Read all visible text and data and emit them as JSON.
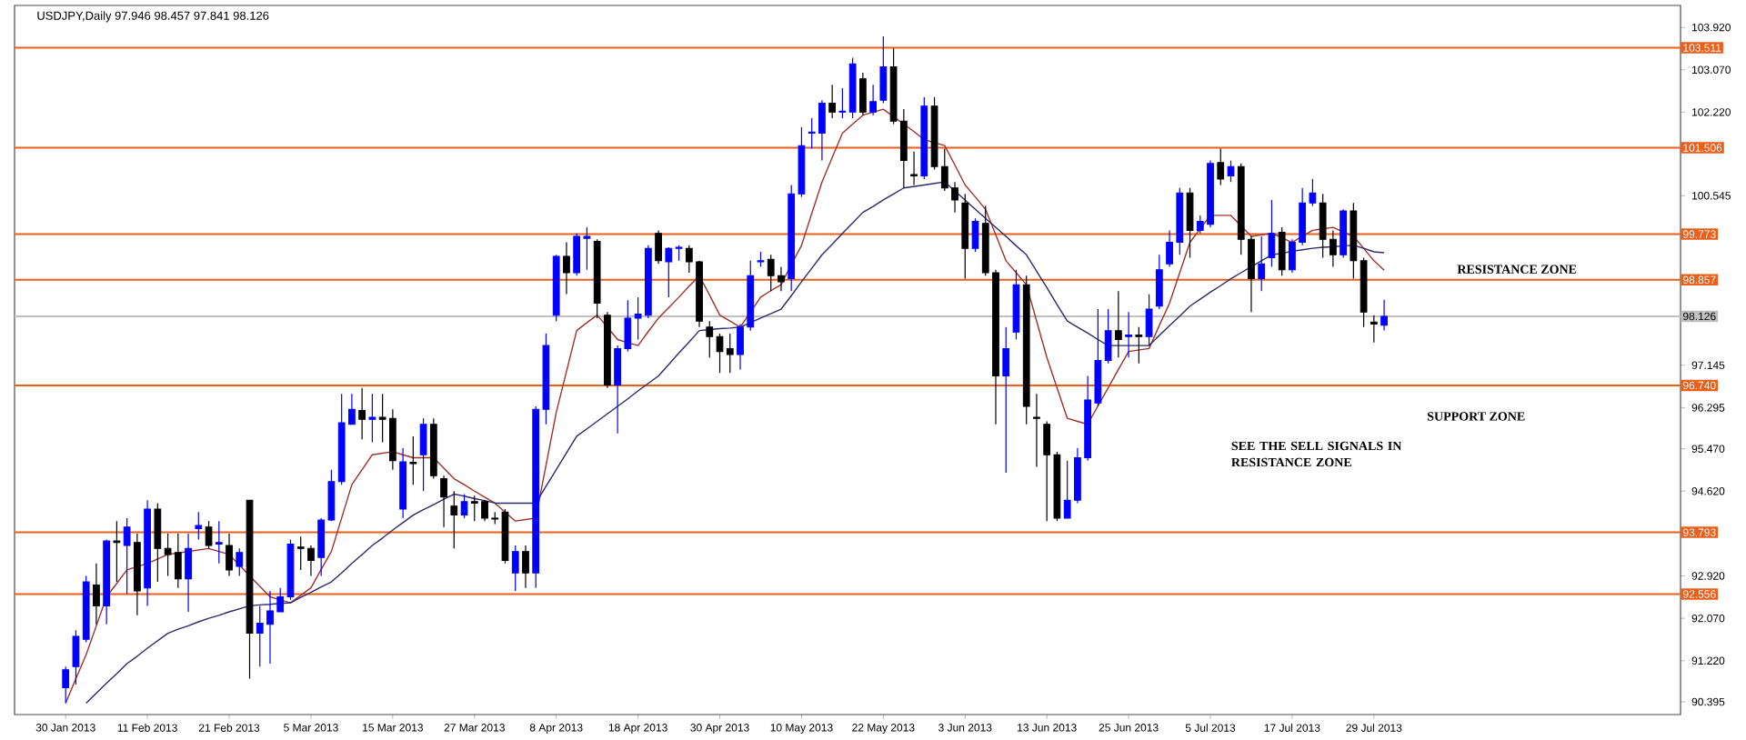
{
  "chart_data": {
    "type": "candlestick",
    "title": "USDJPY,Daily  97.946 98.457 97.841 98.126",
    "categories": [
      "30 Jan 2013",
      null,
      null,
      null,
      null,
      null,
      null,
      null,
      "11 Feb 2013",
      null,
      null,
      null,
      null,
      null,
      null,
      null,
      "21 Feb 2013",
      null,
      null,
      null,
      null,
      null,
      null,
      null,
      "5 Mar 2013",
      null,
      null,
      null,
      null,
      null,
      null,
      null,
      "15 Mar 2013",
      null,
      null,
      null,
      null,
      null,
      null,
      null,
      "27 Mar 2013",
      null,
      null,
      null,
      null,
      null,
      null,
      null,
      "8 Apr 2013",
      null,
      null,
      null,
      null,
      null,
      null,
      null,
      "18 Apr 2013",
      null,
      null,
      null,
      null,
      null,
      null,
      null,
      "30 Apr 2013",
      null,
      null,
      null,
      null,
      null,
      null,
      null,
      "10 May 2013",
      null,
      null,
      null,
      null,
      null,
      null,
      null,
      "22 May 2013",
      null,
      null,
      null,
      null,
      null,
      null,
      null,
      "3 Jun 2013",
      null,
      null,
      null,
      null,
      null,
      null,
      null,
      "13 Jun 2013",
      null,
      null,
      null,
      null,
      null,
      null,
      null,
      "25 Jun 2013",
      null,
      null,
      null,
      null,
      null,
      null,
      null,
      "5 Jul 2013",
      null,
      null,
      null,
      null,
      null,
      null,
      null,
      "17 Jul 2013",
      null,
      null,
      null,
      null,
      null,
      null,
      null,
      "29 Jul 2013",
      null
    ],
    "ohlc": [
      [
        90.68,
        91.1,
        90.37,
        91.04
      ],
      [
        91.1,
        91.83,
        90.74,
        91.71
      ],
      [
        91.65,
        92.92,
        91.59,
        92.8
      ],
      [
        92.74,
        93.17,
        91.95,
        92.32
      ],
      [
        92.32,
        93.65,
        91.95,
        93.62
      ],
      [
        93.62,
        94.02,
        92.8,
        93.59
      ],
      [
        93.53,
        94.08,
        92.56,
        93.9
      ],
      [
        93.59,
        93.77,
        92.13,
        92.62
      ],
      [
        92.68,
        94.44,
        92.32,
        94.26
      ],
      [
        94.26,
        94.38,
        92.8,
        93.47
      ],
      [
        93.47,
        93.77,
        92.92,
        93.35
      ],
      [
        93.39,
        93.77,
        92.68,
        92.86
      ],
      [
        92.86,
        93.77,
        92.2,
        93.47
      ],
      [
        93.87,
        94.2,
        93.65,
        93.93
      ],
      [
        93.9,
        94.02,
        93.47,
        93.53
      ],
      [
        93.56,
        94.02,
        93.17,
        93.59
      ],
      [
        93.53,
        93.77,
        92.92,
        93.04
      ],
      [
        93.11,
        93.47,
        92.92,
        93.39
      ],
      [
        94.44,
        94.44,
        90.86,
        91.77
      ],
      [
        91.77,
        92.32,
        91.1,
        91.97
      ],
      [
        91.95,
        92.62,
        91.16,
        92.22
      ],
      [
        92.2,
        92.68,
        92.2,
        92.5
      ],
      [
        92.5,
        93.65,
        92.44,
        93.56
      ],
      [
        93.5,
        93.71,
        93.04,
        93.47
      ],
      [
        93.47,
        93.53,
        92.92,
        93.23
      ],
      [
        93.29,
        94.08,
        92.92,
        94.04
      ],
      [
        94.04,
        95.05,
        94.02,
        94.81
      ],
      [
        94.81,
        96.57,
        94.75,
        95.99
      ],
      [
        95.96,
        96.57,
        95.96,
        96.26
      ],
      [
        96.24,
        96.69,
        95.66,
        96.06
      ],
      [
        96.06,
        96.57,
        95.6,
        96.1
      ],
      [
        96.1,
        96.57,
        95.6,
        96.06
      ],
      [
        96.08,
        96.26,
        95.05,
        95.23
      ],
      [
        94.26,
        95.48,
        94.08,
        95.21
      ],
      [
        95.2,
        95.72,
        94.75,
        95.17
      ],
      [
        95.35,
        96.08,
        94.62,
        95.96
      ],
      [
        95.96,
        96.08,
        94.87,
        94.93
      ],
      [
        94.87,
        94.93,
        93.9,
        94.5
      ],
      [
        94.32,
        94.62,
        93.47,
        94.14
      ],
      [
        94.14,
        94.56,
        94.08,
        94.41
      ],
      [
        94.41,
        94.53,
        94.02,
        94.38
      ],
      [
        94.41,
        94.44,
        94.02,
        94.08
      ],
      [
        94.08,
        94.2,
        93.96,
        94.06
      ],
      [
        94.2,
        94.26,
        93.17,
        93.23
      ],
      [
        92.98,
        93.53,
        92.62,
        93.41
      ],
      [
        93.41,
        93.53,
        92.68,
        92.98
      ],
      [
        92.98,
        96.32,
        92.68,
        96.26
      ],
      [
        96.26,
        97.78,
        95.96,
        97.54
      ],
      [
        98.15,
        99.36,
        98.03,
        99.33
      ],
      [
        99.33,
        99.61,
        98.57,
        99.0
      ],
      [
        99.0,
        99.79,
        98.94,
        99.73
      ],
      [
        99.73,
        99.91,
        99.06,
        99.69
      ],
      [
        99.63,
        99.67,
        98.09,
        98.39
      ],
      [
        98.15,
        98.21,
        96.69,
        96.75
      ],
      [
        96.75,
        97.54,
        95.78,
        97.48
      ],
      [
        97.48,
        98.45,
        97.42,
        98.09
      ],
      [
        98.09,
        98.51,
        97.66,
        98.17
      ],
      [
        98.15,
        99.55,
        98.09,
        99.49
      ],
      [
        99.79,
        99.85,
        99.18,
        99.24
      ],
      [
        99.22,
        99.51,
        98.51,
        99.49
      ],
      [
        99.49,
        99.55,
        99.24,
        99.51
      ],
      [
        99.49,
        99.55,
        99.0,
        99.22
      ],
      [
        99.22,
        99.24,
        97.91,
        98.03
      ],
      [
        97.91,
        98.03,
        97.3,
        97.72
      ],
      [
        97.72,
        97.78,
        96.99,
        97.42
      ],
      [
        97.48,
        97.78,
        96.99,
        97.36
      ],
      [
        97.36,
        97.97,
        97.06,
        97.91
      ],
      [
        97.91,
        99.24,
        97.84,
        98.94
      ],
      [
        99.22,
        99.42,
        99.12,
        99.24
      ],
      [
        99.27,
        99.36,
        98.63,
        98.94
      ],
      [
        98.94,
        99.12,
        98.63,
        98.82
      ],
      [
        98.88,
        100.76,
        98.63,
        100.58
      ],
      [
        100.58,
        101.92,
        100.52,
        101.55
      ],
      [
        101.8,
        102.1,
        101.49,
        101.82
      ],
      [
        101.8,
        102.46,
        101.25,
        102.4
      ],
      [
        102.4,
        102.77,
        102.1,
        102.22
      ],
      [
        102.22,
        102.7,
        102.1,
        102.24
      ],
      [
        102.22,
        103.31,
        102.1,
        103.19
      ],
      [
        102.89,
        103.01,
        102.16,
        102.22
      ],
      [
        102.22,
        102.77,
        102.16,
        102.43
      ],
      [
        102.46,
        103.74,
        102.4,
        103.13
      ],
      [
        103.13,
        103.5,
        101.98,
        102.04
      ],
      [
        102.04,
        102.28,
        100.7,
        101.25
      ],
      [
        100.97,
        101.43,
        100.76,
        100.94
      ],
      [
        100.94,
        102.52,
        100.88,
        102.34
      ],
      [
        102.34,
        102.52,
        101.07,
        101.13
      ],
      [
        101.13,
        101.49,
        100.64,
        100.7
      ],
      [
        100.7,
        100.82,
        100.21,
        100.46
      ],
      [
        100.4,
        100.58,
        98.88,
        99.49
      ],
      [
        99.49,
        100.09,
        99.42,
        100.03
      ],
      [
        99.99,
        100.34,
        98.94,
        99.0
      ],
      [
        99.0,
        99.06,
        95.96,
        96.93
      ],
      [
        96.93,
        97.91,
        94.99,
        97.48
      ],
      [
        97.81,
        99.06,
        97.66,
        98.76
      ],
      [
        98.76,
        98.94,
        95.96,
        96.32
      ],
      [
        96.1,
        96.57,
        95.11,
        96.08
      ],
      [
        95.96,
        96.02,
        94.02,
        95.35
      ],
      [
        95.35,
        95.41,
        94.02,
        94.08
      ],
      [
        94.08,
        95.23,
        94.08,
        94.44
      ],
      [
        94.44,
        95.48,
        94.38,
        95.29
      ],
      [
        95.29,
        96.93,
        95.23,
        96.45
      ],
      [
        96.39,
        98.27,
        96.32,
        97.24
      ],
      [
        97.24,
        98.27,
        97.18,
        97.84
      ],
      [
        97.84,
        98.63,
        97.3,
        97.66
      ],
      [
        97.72,
        98.21,
        97.3,
        97.75
      ],
      [
        97.75,
        97.91,
        97.18,
        97.72
      ],
      [
        97.72,
        98.57,
        97.54,
        98.27
      ],
      [
        98.33,
        99.36,
        98.27,
        99.06
      ],
      [
        99.18,
        99.85,
        99.12,
        99.61
      ],
      [
        99.61,
        100.7,
        99.36,
        100.6
      ],
      [
        100.6,
        100.7,
        99.3,
        99.85
      ],
      [
        99.85,
        100.15,
        99.79,
        100.03
      ],
      [
        99.97,
        101.25,
        99.91,
        101.19
      ],
      [
        101.21,
        101.49,
        100.76,
        100.88
      ],
      [
        100.94,
        101.25,
        100.82,
        101.13
      ],
      [
        101.13,
        101.19,
        99.36,
        99.67
      ],
      [
        99.67,
        99.73,
        98.21,
        98.88
      ],
      [
        98.88,
        99.73,
        98.63,
        99.18
      ],
      [
        99.3,
        100.46,
        99.12,
        99.79
      ],
      [
        99.81,
        99.91,
        98.94,
        99.06
      ],
      [
        99.06,
        99.67,
        99.0,
        99.61
      ],
      [
        99.61,
        100.7,
        99.55,
        100.4
      ],
      [
        100.4,
        100.88,
        100.34,
        100.6
      ],
      [
        100.4,
        100.58,
        99.3,
        99.67
      ],
      [
        99.67,
        99.85,
        99.12,
        99.36
      ],
      [
        99.36,
        100.27,
        99.3,
        100.24
      ],
      [
        100.24,
        100.4,
        98.88,
        99.24
      ],
      [
        99.24,
        99.3,
        97.91,
        98.21
      ],
      [
        98.01,
        98.15,
        97.6,
        97.97
      ],
      [
        97.946,
        98.457,
        97.841,
        98.126
      ]
    ],
    "colors": [
      "#0000ff",
      "#0000ff",
      "#0000ff",
      "#000000",
      "#0000ff",
      "#000000",
      "#0000ff",
      "#000000",
      "#0000ff",
      "#000000",
      "#000000",
      "#000000",
      "#0000ff",
      "#0000ff",
      "#000000",
      "#0000ff",
      "#000000",
      "#0000ff",
      "#000000",
      "#0000ff",
      "#0000ff",
      "#0000ff",
      "#0000ff",
      "#000000",
      "#000000",
      "#0000ff",
      "#0000ff",
      "#0000ff",
      "#0000ff",
      "#000000",
      "#0000ff",
      "#000000",
      "#000000",
      "#0000ff",
      "#000000",
      "#0000ff",
      "#000000",
      "#000000",
      "#000000",
      "#0000ff",
      "#000000",
      "#000000",
      "#000000",
      "#000000",
      "#0000ff",
      "#000000",
      "#0000ff",
      "#0000ff",
      "#0000ff",
      "#000000",
      "#0000ff",
      "#0000ff",
      "#000000",
      "#000000",
      "#0000ff",
      "#0000ff",
      "#0000ff",
      "#0000ff",
      "#000000",
      "#0000ff",
      "#0000ff",
      "#000000",
      "#000000",
      "#000000",
      "#000000",
      "#000000",
      "#0000ff",
      "#0000ff",
      "#0000ff",
      "#000000",
      "#000000",
      "#0000ff",
      "#0000ff",
      "#0000ff",
      "#0000ff",
      "#000000",
      "#0000ff",
      "#0000ff",
      "#000000",
      "#0000ff",
      "#0000ff",
      "#000000",
      "#000000",
      "#000000",
      "#0000ff",
      "#000000",
      "#000000",
      "#000000",
      "#000000",
      "#0000ff",
      "#000000",
      "#000000",
      "#0000ff",
      "#0000ff",
      "#000000",
      "#000000",
      "#000000",
      "#000000",
      "#0000ff",
      "#0000ff",
      "#0000ff",
      "#0000ff",
      "#0000ff",
      "#000000",
      "#0000ff",
      "#000000",
      "#0000ff",
      "#0000ff",
      "#0000ff",
      "#0000ff",
      "#000000",
      "#0000ff",
      "#0000ff",
      "#000000",
      "#0000ff",
      "#000000",
      "#000000",
      "#0000ff",
      "#0000ff",
      "#000000",
      "#0000ff",
      "#0000ff",
      "#0000ff",
      "#000000",
      "#000000",
      "#0000ff",
      "#000000",
      "#000000",
      "#000000",
      "#0000ff"
    ],
    "series": [
      {
        "type": "line",
        "color": "#a0302a",
        "values": [
          90.37,
          90.86,
          91.34,
          91.92,
          92.5,
          92.77,
          93.04,
          93.11,
          93.17,
          93.26,
          93.35,
          93.38,
          93.41,
          93.44,
          93.47,
          93.41,
          93.35,
          93.14,
          92.92,
          92.71,
          92.5,
          92.44,
          92.38,
          92.53,
          92.68,
          93.05,
          93.41,
          94.08,
          94.75,
          95.05,
          95.35,
          95.38,
          95.41,
          95.35,
          95.29,
          95.29,
          95.29,
          95.08,
          94.87,
          94.75,
          94.62,
          94.5,
          94.38,
          94.2,
          94.02,
          94.05,
          94.08,
          95.14,
          96.2,
          97.02,
          97.84,
          98.0,
          98.15,
          97.91,
          97.66,
          97.6,
          97.54,
          97.82,
          98.09,
          98.3,
          98.51,
          98.73,
          98.94,
          98.55,
          98.15,
          98.03,
          97.91,
          98.21,
          98.51,
          98.64,
          98.76,
          99.16,
          99.55,
          100.19,
          100.82,
          101.31,
          101.8,
          101.98,
          102.16,
          102.22,
          102.28,
          102.13,
          101.98,
          101.83,
          101.67,
          101.61,
          101.55,
          101.16,
          100.76,
          100.52,
          100.27,
          99.76,
          99.24,
          99.0,
          98.76,
          98.03,
          97.3,
          96.69,
          96.08,
          96.02,
          95.96,
          96.33,
          96.69,
          97.06,
          97.42,
          97.45,
          97.48,
          97.94,
          98.39,
          99.0,
          99.61,
          99.88,
          100.15,
          100.15,
          100.15,
          99.94,
          99.73,
          99.76,
          99.79,
          99.7,
          99.61,
          99.73,
          99.85,
          99.88,
          99.91,
          99.82,
          99.73,
          99.49,
          99.24,
          99.05
        ]
      },
      {
        "type": "line",
        "color": "#2b2b6b",
        "values": [
          null,
          null,
          90.37,
          90.57,
          90.77,
          90.96,
          91.16,
          91.31,
          91.47,
          91.62,
          91.77,
          91.85,
          91.92,
          92.0,
          92.07,
          92.13,
          92.2,
          92.26,
          92.32,
          92.34,
          92.35,
          92.37,
          92.38,
          92.49,
          92.59,
          92.7,
          92.8,
          92.98,
          93.17,
          93.35,
          93.53,
          93.68,
          93.84,
          93.99,
          94.14,
          94.25,
          94.35,
          94.46,
          94.56,
          94.52,
          94.47,
          94.43,
          94.38,
          94.38,
          94.38,
          94.38,
          94.38,
          94.72,
          95.05,
          95.39,
          95.72,
          95.87,
          96.02,
          96.17,
          96.32,
          96.47,
          96.63,
          96.78,
          96.93,
          97.16,
          97.39,
          97.61,
          97.84,
          97.86,
          97.88,
          97.89,
          97.91,
          98.0,
          98.09,
          98.18,
          98.27,
          98.54,
          98.82,
          99.09,
          99.36,
          99.57,
          99.79,
          100.0,
          100.21,
          100.33,
          100.46,
          100.58,
          100.7,
          100.73,
          100.76,
          100.79,
          100.82,
          100.64,
          100.46,
          100.27,
          100.09,
          99.91,
          99.73,
          99.54,
          99.36,
          99.03,
          98.7,
          98.36,
          98.03,
          97.91,
          97.79,
          97.66,
          97.54,
          97.54,
          97.54,
          97.54,
          97.54,
          97.74,
          97.94,
          98.13,
          98.33,
          98.47,
          98.61,
          98.74,
          98.88,
          99.0,
          99.12,
          99.24,
          99.36,
          99.39,
          99.43,
          99.46,
          99.49,
          99.51,
          99.52,
          99.54,
          99.55,
          99.49,
          99.42,
          99.4
        ]
      }
    ],
    "ylim": [
      90.14,
      104.36
    ],
    "yticks": [
      {
        "value": 103.92,
        "label": "103.920"
      },
      {
        "value": 103.07,
        "label": "103.070"
      },
      {
        "value": 102.22,
        "label": "102.220"
      },
      100.545,
      97.145,
      96.295,
      {
        "value": 95.47,
        "label": "95.470"
      },
      {
        "value": 94.62,
        "label": "94.620"
      },
      {
        "value": 92.92,
        "label": "92.920"
      },
      {
        "value": 92.07,
        "label": "92.070"
      },
      {
        "value": 91.22,
        "label": "91.220"
      },
      90.395
    ],
    "ref_lines": [
      {
        "axis": "y",
        "value": 103.511,
        "label": "103.511",
        "color": "#e8601c"
      },
      {
        "axis": "y",
        "value": 101.506,
        "label": "101.506",
        "color": "#e8601c"
      },
      {
        "axis": "y",
        "value": 99.773,
        "label": "99.773",
        "color": "#e8601c"
      },
      {
        "axis": "y",
        "value": 98.857,
        "label": "98.857",
        "color": "#e8601c"
      },
      {
        "axis": "y",
        "value": 96.74,
        "label": "96.740",
        "color": "#e8601c"
      },
      {
        "axis": "y",
        "value": 93.793,
        "label": "93.793",
        "color": "#e8601c"
      },
      {
        "axis": "y",
        "value": 92.556,
        "label": "92.556",
        "color": "#e8601c"
      },
      {
        "axis": "y",
        "value": 98.126,
        "label": "98.126",
        "color": "#c0c0c0"
      }
    ],
    "annotations": [
      "RESISTANCE ZONE",
      "SUPPORT ZONE",
      "SEE THE SELL SIGNALS IN RESISTANCE ZONE"
    ],
    "grid": false
  }
}
